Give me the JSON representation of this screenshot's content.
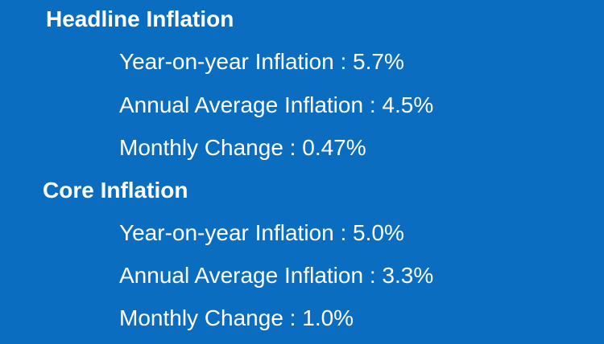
{
  "sections": [
    {
      "heading": "Headline Inflation",
      "items": [
        "Year-on-year Inflation : 5.7%",
        "Annual Average Inflation : 4.5%",
        "Monthly Change : 0.47%"
      ]
    },
    {
      "heading": "Core Inflation",
      "items": [
        "Year-on-year Inflation : 5.0%",
        "Annual Average Inflation : 3.3%",
        "Monthly Change : 1.0%"
      ]
    }
  ]
}
